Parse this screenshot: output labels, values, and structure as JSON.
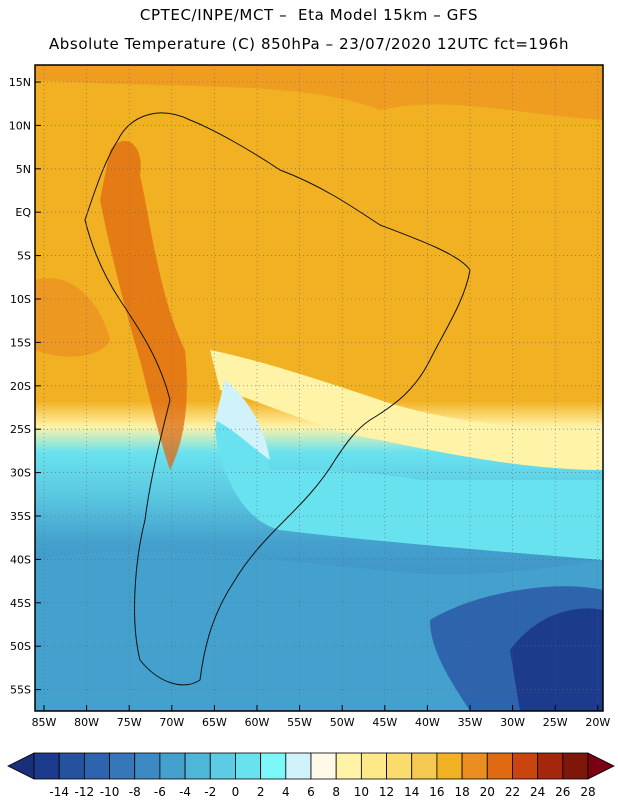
{
  "header": {
    "line1": "CPTEC/INPE/MCT –  Eta Model 15km – GFS",
    "line2": "Absolute Temperature (C) 850hPa – 23/07/2020 12UTC fct=196h"
  },
  "lat_labels": [
    "15N",
    "10N",
    "5N",
    "EQ",
    "5S",
    "10S",
    "15S",
    "20S",
    "25S",
    "30S",
    "35S",
    "40S",
    "45S",
    "50S",
    "55S"
  ],
  "lon_labels": [
    "85W",
    "80W",
    "75W",
    "70W",
    "65W",
    "60W",
    "55W",
    "50W",
    "45W",
    "40W",
    "35W",
    "30W",
    "25W",
    "20W"
  ],
  "colorbar": {
    "labels": [
      "-14",
      "-12",
      "-10",
      "-8",
      "-6",
      "-4",
      "-2",
      "0",
      "2",
      "4",
      "6",
      "8",
      "10",
      "12",
      "14",
      "16",
      "18",
      "20",
      "22",
      "24",
      "26",
      "28"
    ],
    "colors": [
      "#1d3b8c",
      "#25529d",
      "#2e64ad",
      "#3677b9",
      "#3b8ac3",
      "#44a0cd",
      "#4eb6d8",
      "#5ccbe3",
      "#69e2ef",
      "#7cf7f7",
      "#cff2fb",
      "#fff9e7",
      "#fff3a8",
      "#fde987",
      "#f9dc6c",
      "#f5c851",
      "#f2b122",
      "#eb8d21",
      "#df6a11",
      "#c9440f",
      "#a4260b",
      "#7f160a"
    ],
    "low_end_color": "#1a2f7a",
    "high_end_color": "#7a0014"
  }
}
